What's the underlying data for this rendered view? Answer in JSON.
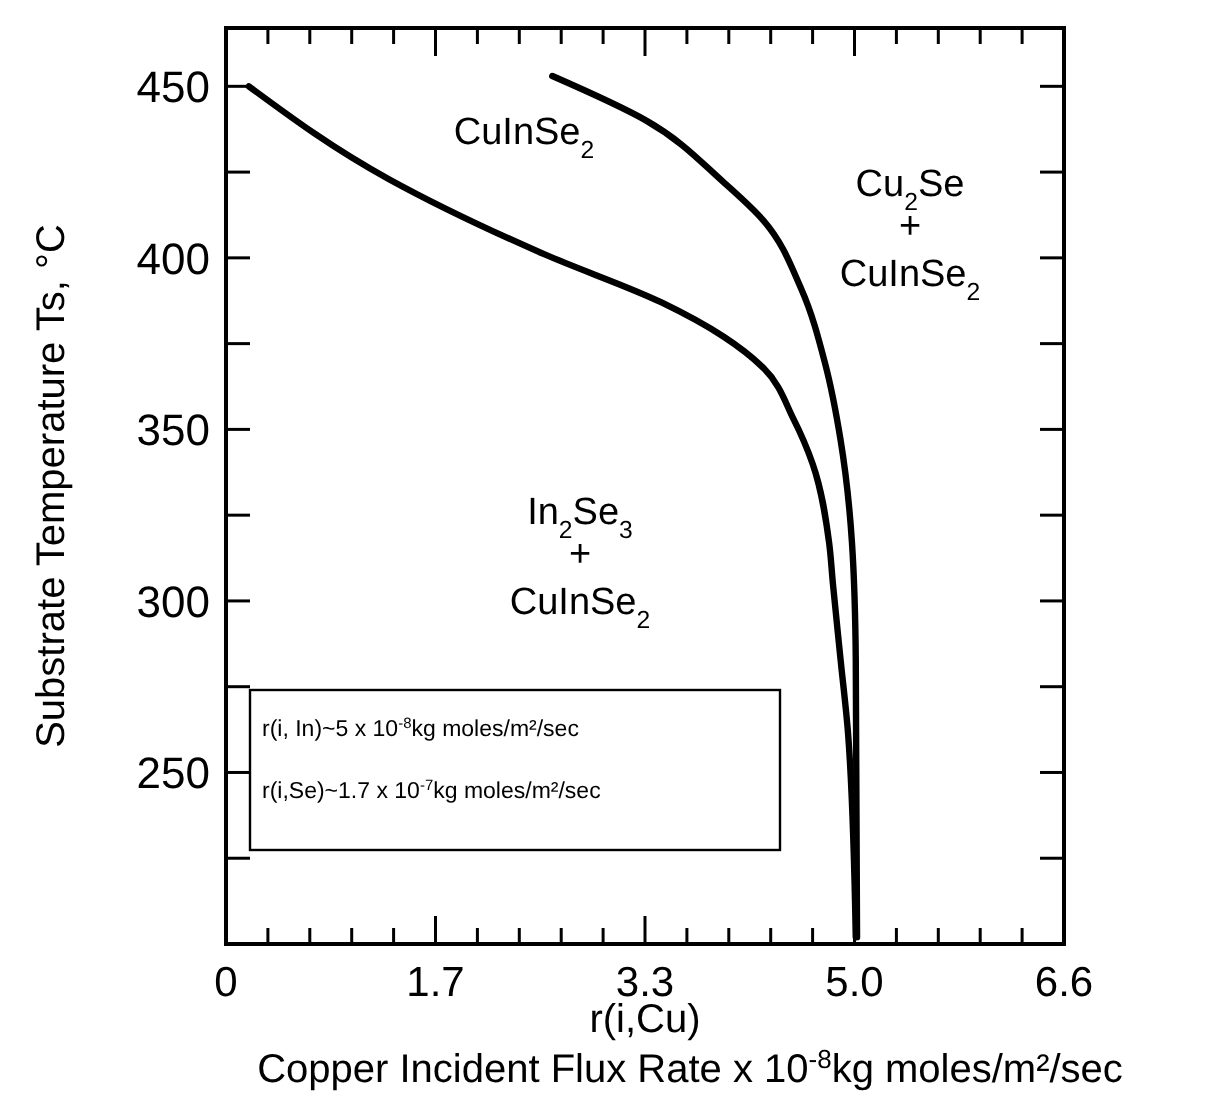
{
  "chart_data": {
    "type": "line",
    "xlabel": "r(i,Cu)\nCopper Incident Flux Rate x 10$^{-8}$kg moles/m²/sec",
    "ylabel": "Substrate Temperature Ts, °C",
    "xlim": [
      0,
      6.6
    ],
    "xticks": [
      0,
      {
        "value": 0.33,
        "label": null
      },
      {
        "value": 0.66,
        "label": null
      },
      {
        "value": 0.99,
        "label": null
      },
      {
        "value": 1.32,
        "label": null
      },
      {
        "value": 1.65,
        "label": "1.7"
      },
      {
        "value": 1.98,
        "label": null
      },
      {
        "value": 2.31,
        "label": null
      },
      {
        "value": 2.64,
        "label": null
      },
      {
        "value": 2.97,
        "label": null
      },
      3.3,
      {
        "value": 3.63,
        "label": null
      },
      {
        "value": 3.96,
        "label": null
      },
      {
        "value": 4.29,
        "label": null
      },
      {
        "value": 4.62,
        "label": null
      },
      {
        "value": 4.95,
        "label": "5.0"
      },
      {
        "value": 5.28,
        "label": null
      },
      {
        "value": 5.61,
        "label": null
      },
      {
        "value": 5.94,
        "label": null
      },
      {
        "value": 6.27,
        "label": null
      },
      6.6
    ],
    "ylim": [
      200,
      467
    ],
    "yticks": [
      {
        "value": 225,
        "label": null
      },
      250,
      {
        "value": 275,
        "label": null
      },
      300,
      {
        "value": 325,
        "label": null
      },
      350,
      {
        "value": 375,
        "label": null
      },
      400,
      {
        "value": 425,
        "label": null
      },
      450
    ],
    "grid": false,
    "marker": "none",
    "line_style": "solid",
    "series": [
      {
        "color": "#000000",
        "x": [
          0.18,
          1.28,
          2.51,
          3.43,
          3.92,
          4.23,
          4.47,
          4.62,
          4.75,
          4.78,
          4.84,
          4.9,
          4.96
        ],
        "values": [
          450,
          423,
          401,
          387,
          377,
          368,
          353,
          340,
          317,
          305,
          283,
          261,
          202
        ]
      },
      {
        "color": "#000000",
        "x": [
          2.57,
          3.31,
          3.92,
          4.23,
          4.53,
          4.72,
          4.84,
          4.93,
          4.96,
          4.97
        ],
        "values": [
          453,
          440,
          422,
          411,
          391,
          369,
          347,
          317,
          283,
          202
        ]
      }
    ],
    "annotations": [
      "CuInSe$_{2}$",
      "Cu$_{2}$Se\n+\nCuInSe$_{2}$",
      "In$_{2}$Se$_{3}$\n+\nCuInSe$_{2}$",
      "r(i, In)~5 x 10$^{-8}$kg moles/m²/sec",
      "r(i,Se)~1.7 x 10$^{-7}$kg moles/m²/sec"
    ]
  }
}
